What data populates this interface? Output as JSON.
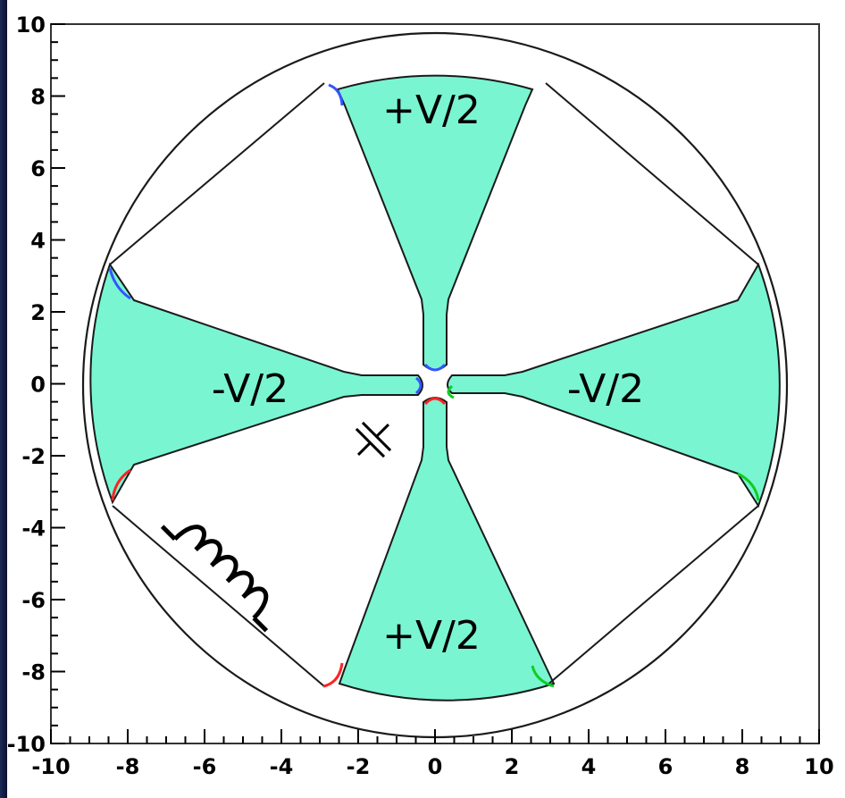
{
  "plot": {
    "x_ticks": [
      "-10",
      "-8",
      "-6",
      "-4",
      "-2",
      "0",
      "2",
      "4",
      "6",
      "8",
      "10"
    ],
    "y_ticks": [
      "10",
      "8",
      "6",
      "4",
      "2",
      "0",
      "-2",
      "-4",
      "-6",
      "-8",
      "-10"
    ],
    "xlim": [
      -10,
      10
    ],
    "ylim": [
      -10,
      10
    ],
    "fill_color": "#79f5d2",
    "outline_color": "#1a1a1a",
    "tip_colors": {
      "top_left": "#3355ff",
      "bottom_left": "#ff2222",
      "right": "#11cc22"
    }
  },
  "labels": {
    "top": "+V/2",
    "bottom": "+V/2",
    "left": "-V/2",
    "right": "-V/2"
  },
  "symbols": {
    "capacitor": "capacitor-symbol",
    "inductor": "inductor-symbol"
  }
}
